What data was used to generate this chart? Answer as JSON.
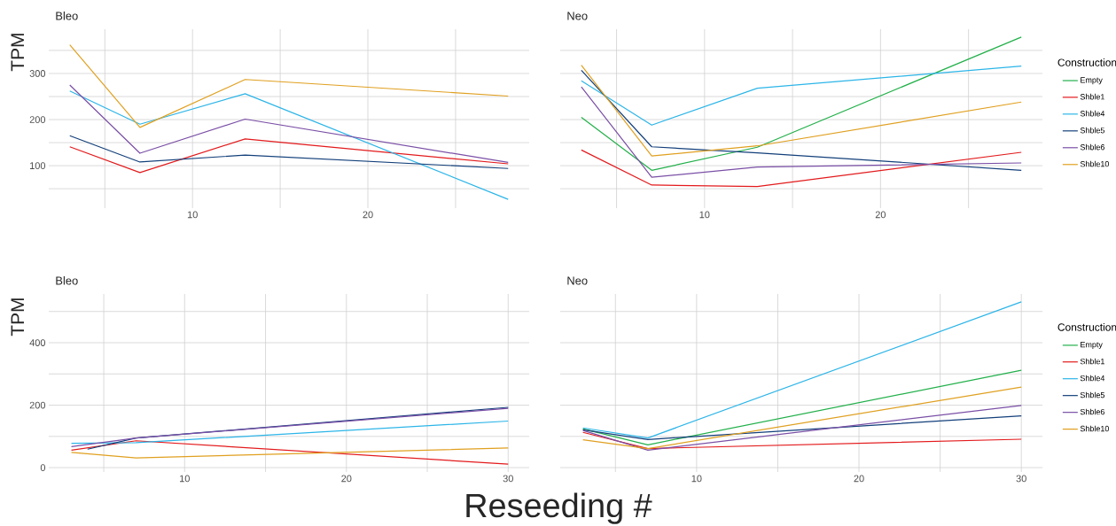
{
  "chart_data": [
    {
      "type": "line",
      "title": "Bleo",
      "ylabel": "TPM",
      "xlim": [
        1.8,
        29.2
      ],
      "ylim": [
        8,
        396
      ],
      "xticks": [
        {
          "value": 5,
          "label": null
        },
        10,
        {
          "value": 15,
          "label": null
        },
        20,
        {
          "value": 25,
          "label": null
        }
      ],
      "yticks": [
        {
          "value": 50,
          "label": null
        },
        100,
        {
          "value": 150,
          "label": null
        },
        200,
        {
          "value": 250,
          "label": null
        },
        300,
        {
          "value": 350,
          "label": null
        }
      ],
      "grid": true,
      "series": [
        {
          "color": "#e31a1c",
          "x": [
            3,
            7,
            13,
            28
          ],
          "values": [
            141,
            85,
            158,
            104
          ]
        },
        {
          "color": "#2cb5e8",
          "x": [
            3,
            7,
            13,
            28
          ],
          "values": [
            262,
            190,
            256,
            27
          ]
        },
        {
          "color": "#123f7a",
          "x": [
            3,
            7,
            13,
            28
          ],
          "values": [
            165,
            108,
            123,
            94
          ]
        },
        {
          "color": "#7a4fa6",
          "x": [
            3,
            7,
            13,
            28
          ],
          "values": [
            275,
            127,
            201,
            107
          ]
        },
        {
          "color": "#e0a020",
          "x": [
            3,
            7,
            13,
            28
          ],
          "values": [
            362,
            183,
            287,
            251
          ]
        }
      ]
    },
    {
      "type": "line",
      "title": "Neo",
      "xlim": [
        1.8,
        29.2
      ],
      "ylim": [
        8,
        396
      ],
      "xticks": [
        {
          "value": 5,
          "label": null
        },
        10,
        {
          "value": 15,
          "label": null
        },
        20,
        {
          "value": 25,
          "label": null
        }
      ],
      "yticks": [
        {
          "value": 50,
          "label": null
        },
        {
          "value": 100,
          "label": null
        },
        {
          "value": 150,
          "label": null
        },
        {
          "value": 200,
          "label": null
        },
        {
          "value": 250,
          "label": null
        },
        {
          "value": 300,
          "label": null
        },
        {
          "value": 350,
          "label": null
        }
      ],
      "tick_labels": "x",
      "grid": true,
      "legend": "right",
      "legend_title": "Construction",
      "series": [
        {
          "name": "Empty",
          "color": "#22b04a",
          "x": [
            3,
            7,
            13,
            28
          ],
          "values": [
            205,
            90,
            140,
            379
          ]
        },
        {
          "name": "Shble1",
          "color": "#e31a1c",
          "x": [
            3,
            7,
            13,
            28
          ],
          "values": [
            134,
            58,
            55,
            129
          ]
        },
        {
          "name": "Shble4",
          "color": "#2cb5e8",
          "x": [
            3,
            7,
            13,
            28
          ],
          "values": [
            284,
            188,
            268,
            316
          ]
        },
        {
          "name": "Shble5",
          "color": "#123f7a",
          "x": [
            3,
            7,
            13,
            28
          ],
          "values": [
            307,
            141,
            128,
            90
          ]
        },
        {
          "name": "Shble6",
          "color": "#7a4fa6",
          "x": [
            3,
            7,
            13,
            28
          ],
          "values": [
            271,
            75,
            97,
            106
          ]
        },
        {
          "name": "Shble10",
          "color": "#e0a020",
          "x": [
            3,
            7,
            13,
            28
          ],
          "values": [
            318,
            121,
            143,
            238
          ]
        }
      ]
    },
    {
      "type": "line",
      "title": "Bleo",
      "ylabel": "TPM",
      "xlabel": "Reseeding #",
      "xlim": [
        1.6,
        31.3
      ],
      "ylim": [
        -14,
        556
      ],
      "xticks": [
        {
          "value": 5,
          "label": null
        },
        10,
        {
          "value": 15,
          "label": null
        },
        20,
        {
          "value": 25,
          "label": null
        },
        30
      ],
      "yticks": [
        0,
        {
          "value": 100,
          "label": null
        },
        200,
        {
          "value": 300,
          "label": null
        },
        400,
        {
          "value": 500,
          "label": null
        }
      ],
      "grid": true,
      "series": [
        {
          "color": "#e31a1c",
          "x": [
            3,
            7,
            30
          ],
          "values": [
            56,
            86,
            11
          ]
        },
        {
          "color": "#2cb5e8",
          "x": [
            3,
            7,
            30
          ],
          "values": [
            78,
            80,
            149
          ]
        },
        {
          "color": "#123f7a",
          "x": [
            4,
            7,
            30
          ],
          "values": [
            59,
            95,
            193
          ]
        },
        {
          "color": "#7a4fa6",
          "x": [
            3,
            7,
            30
          ],
          "values": [
            67,
            95,
            190
          ]
        },
        {
          "color": "#e0a020",
          "x": [
            3,
            7,
            30
          ],
          "values": [
            49,
            31,
            63
          ]
        }
      ]
    },
    {
      "type": "line",
      "title": "Neo",
      "xlim": [
        1.6,
        31.3
      ],
      "ylim": [
        -14,
        556
      ],
      "xticks": [
        {
          "value": 5,
          "label": null
        },
        10,
        {
          "value": 15,
          "label": null
        },
        20,
        {
          "value": 25,
          "label": null
        },
        30
      ],
      "yticks": [
        {
          "value": 0,
          "label": null
        },
        {
          "value": 100,
          "label": null
        },
        {
          "value": 200,
          "label": null
        },
        {
          "value": 300,
          "label": null
        },
        {
          "value": 400,
          "label": null
        },
        {
          "value": 500,
          "label": null
        }
      ],
      "tick_labels": "x",
      "grid": true,
      "legend": "right",
      "legend_title": "Construction",
      "series": [
        {
          "name": "Empty",
          "color": "#22b04a",
          "x": [
            3,
            7,
            30
          ],
          "values": [
            124,
            73,
            312
          ]
        },
        {
          "name": "Shble1",
          "color": "#e31a1c",
          "x": [
            3,
            7,
            30
          ],
          "values": [
            113,
            61,
            91
          ]
        },
        {
          "name": "Shble4",
          "color": "#2cb5e8",
          "x": [
            3,
            7,
            30
          ],
          "values": [
            127,
            95,
            531
          ]
        },
        {
          "name": "Shble5",
          "color": "#123f7a",
          "x": [
            3,
            7,
            30
          ],
          "values": [
            121,
            90,
            166
          ]
        },
        {
          "name": "Shble6",
          "color": "#7a4fa6",
          "x": [
            3,
            7,
            30
          ],
          "values": [
            119,
            56,
            199
          ]
        },
        {
          "name": "Shble10",
          "color": "#e0a020",
          "x": [
            3,
            7,
            30
          ],
          "values": [
            89,
            61,
            258
          ]
        }
      ]
    }
  ]
}
